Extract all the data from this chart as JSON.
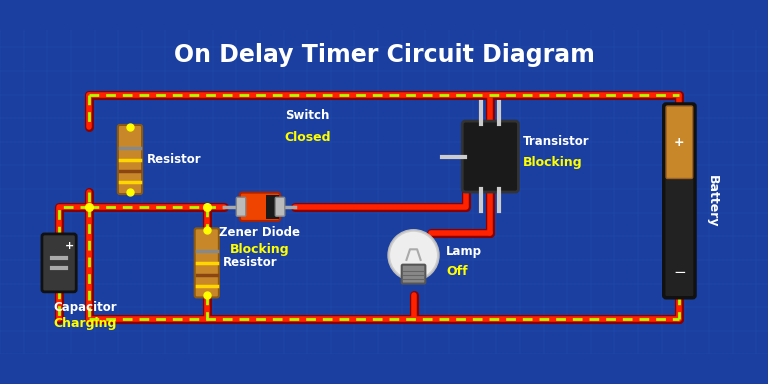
{
  "title": "On Delay Timer Circuit Diagram",
  "title_color": "#FFFFFF",
  "title_fontsize": 17,
  "bg_color": "#1a3fa0",
  "grid_color": "#2a5bc0",
  "wire_red": "#FF2200",
  "wire_green": "#AAFF00",
  "labels": {
    "resistor1": "Resistor",
    "resistor2": "Resistor",
    "capacitor": "Capacitor",
    "capacitor_state": "Charging",
    "switch": "Switch",
    "switch_state": "Closed",
    "zener": "Zener Diode",
    "zener_state": "Blocking",
    "transistor": "Transistor",
    "transistor_state": "Blocking",
    "lamp": "Lamp",
    "lamp_state": "Off",
    "battery": "Battery"
  },
  "label_color": "#FFFFFF",
  "state_color": "#FFFF00",
  "xmax": 13,
  "ymax": 5.5
}
